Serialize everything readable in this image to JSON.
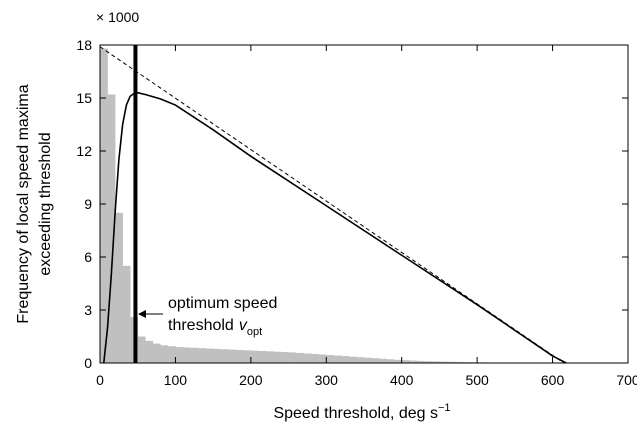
{
  "chart_data": {
    "type": "histogram",
    "y_multiplier": "× 1000",
    "x_label": "Speed threshold, deg s",
    "x_label_superscript": "−1",
    "y_label": [
      "Frequency of local speed maxima",
      "exceeding threshold"
    ],
    "xlim": [
      0,
      700
    ],
    "xticks": [
      0,
      100,
      200,
      300,
      400,
      500,
      600,
      700
    ],
    "ylim": [
      0,
      18
    ],
    "yticks": [
      0,
      3,
      6,
      9,
      12,
      15,
      18
    ],
    "bins": [
      0,
      10,
      20,
      30,
      40,
      50,
      60,
      70,
      80,
      90,
      100,
      110,
      120,
      130,
      140,
      150,
      160,
      170,
      180,
      190,
      200,
      210,
      220,
      230,
      240,
      250,
      260,
      270,
      280,
      290,
      300,
      310,
      320,
      330,
      340,
      350,
      360,
      370,
      380,
      390,
      400,
      410,
      420,
      430,
      440,
      450,
      460,
      470,
      480,
      490,
      500,
      510,
      520,
      530,
      540,
      550,
      560,
      570,
      580,
      590,
      600
    ],
    "counts": [
      17.8,
      15.2,
      8.5,
      5.5,
      2.6,
      1.5,
      1.25,
      1.1,
      1.0,
      0.95,
      0.9,
      0.88,
      0.86,
      0.84,
      0.82,
      0.8,
      0.78,
      0.76,
      0.74,
      0.72,
      0.7,
      0.68,
      0.66,
      0.64,
      0.62,
      0.6,
      0.57,
      0.54,
      0.51,
      0.48,
      0.45,
      0.42,
      0.39,
      0.36,
      0.33,
      0.3,
      0.27,
      0.24,
      0.21,
      0.18,
      0.16,
      0.14,
      0.12,
      0.1,
      0.09,
      0.08,
      0.07,
      0.06,
      0.05,
      0.04,
      0.035,
      0.03,
      0.025,
      0.02,
      0.015,
      0.012,
      0.01,
      0.008,
      0.005,
      0.003
    ],
    "color": "#c0c0c0",
    "lines": [
      {
        "x": [
          0,
          615
        ],
        "values": [
          17.9,
          0
        ],
        "color": "#000000",
        "style": "dashed"
      },
      {
        "x": [
          5,
          10,
          15,
          20,
          25,
          30,
          35,
          40,
          45,
          50,
          60,
          80,
          100,
          150,
          200,
          300,
          400,
          500,
          600,
          618
        ],
        "values": [
          0,
          2,
          5,
          8.5,
          11.5,
          13.5,
          14.6,
          15.1,
          15.25,
          15.3,
          15.2,
          14.95,
          14.6,
          13.2,
          11.7,
          8.9,
          6.1,
          3.3,
          0.4,
          0
        ],
        "color": "#000000",
        "style": "solid"
      }
    ],
    "vline": 47,
    "annotation": [
      "optimum speed",
      "threshold"
    ],
    "annotation_symbol": "v",
    "annotation_subscript": "opt"
  }
}
